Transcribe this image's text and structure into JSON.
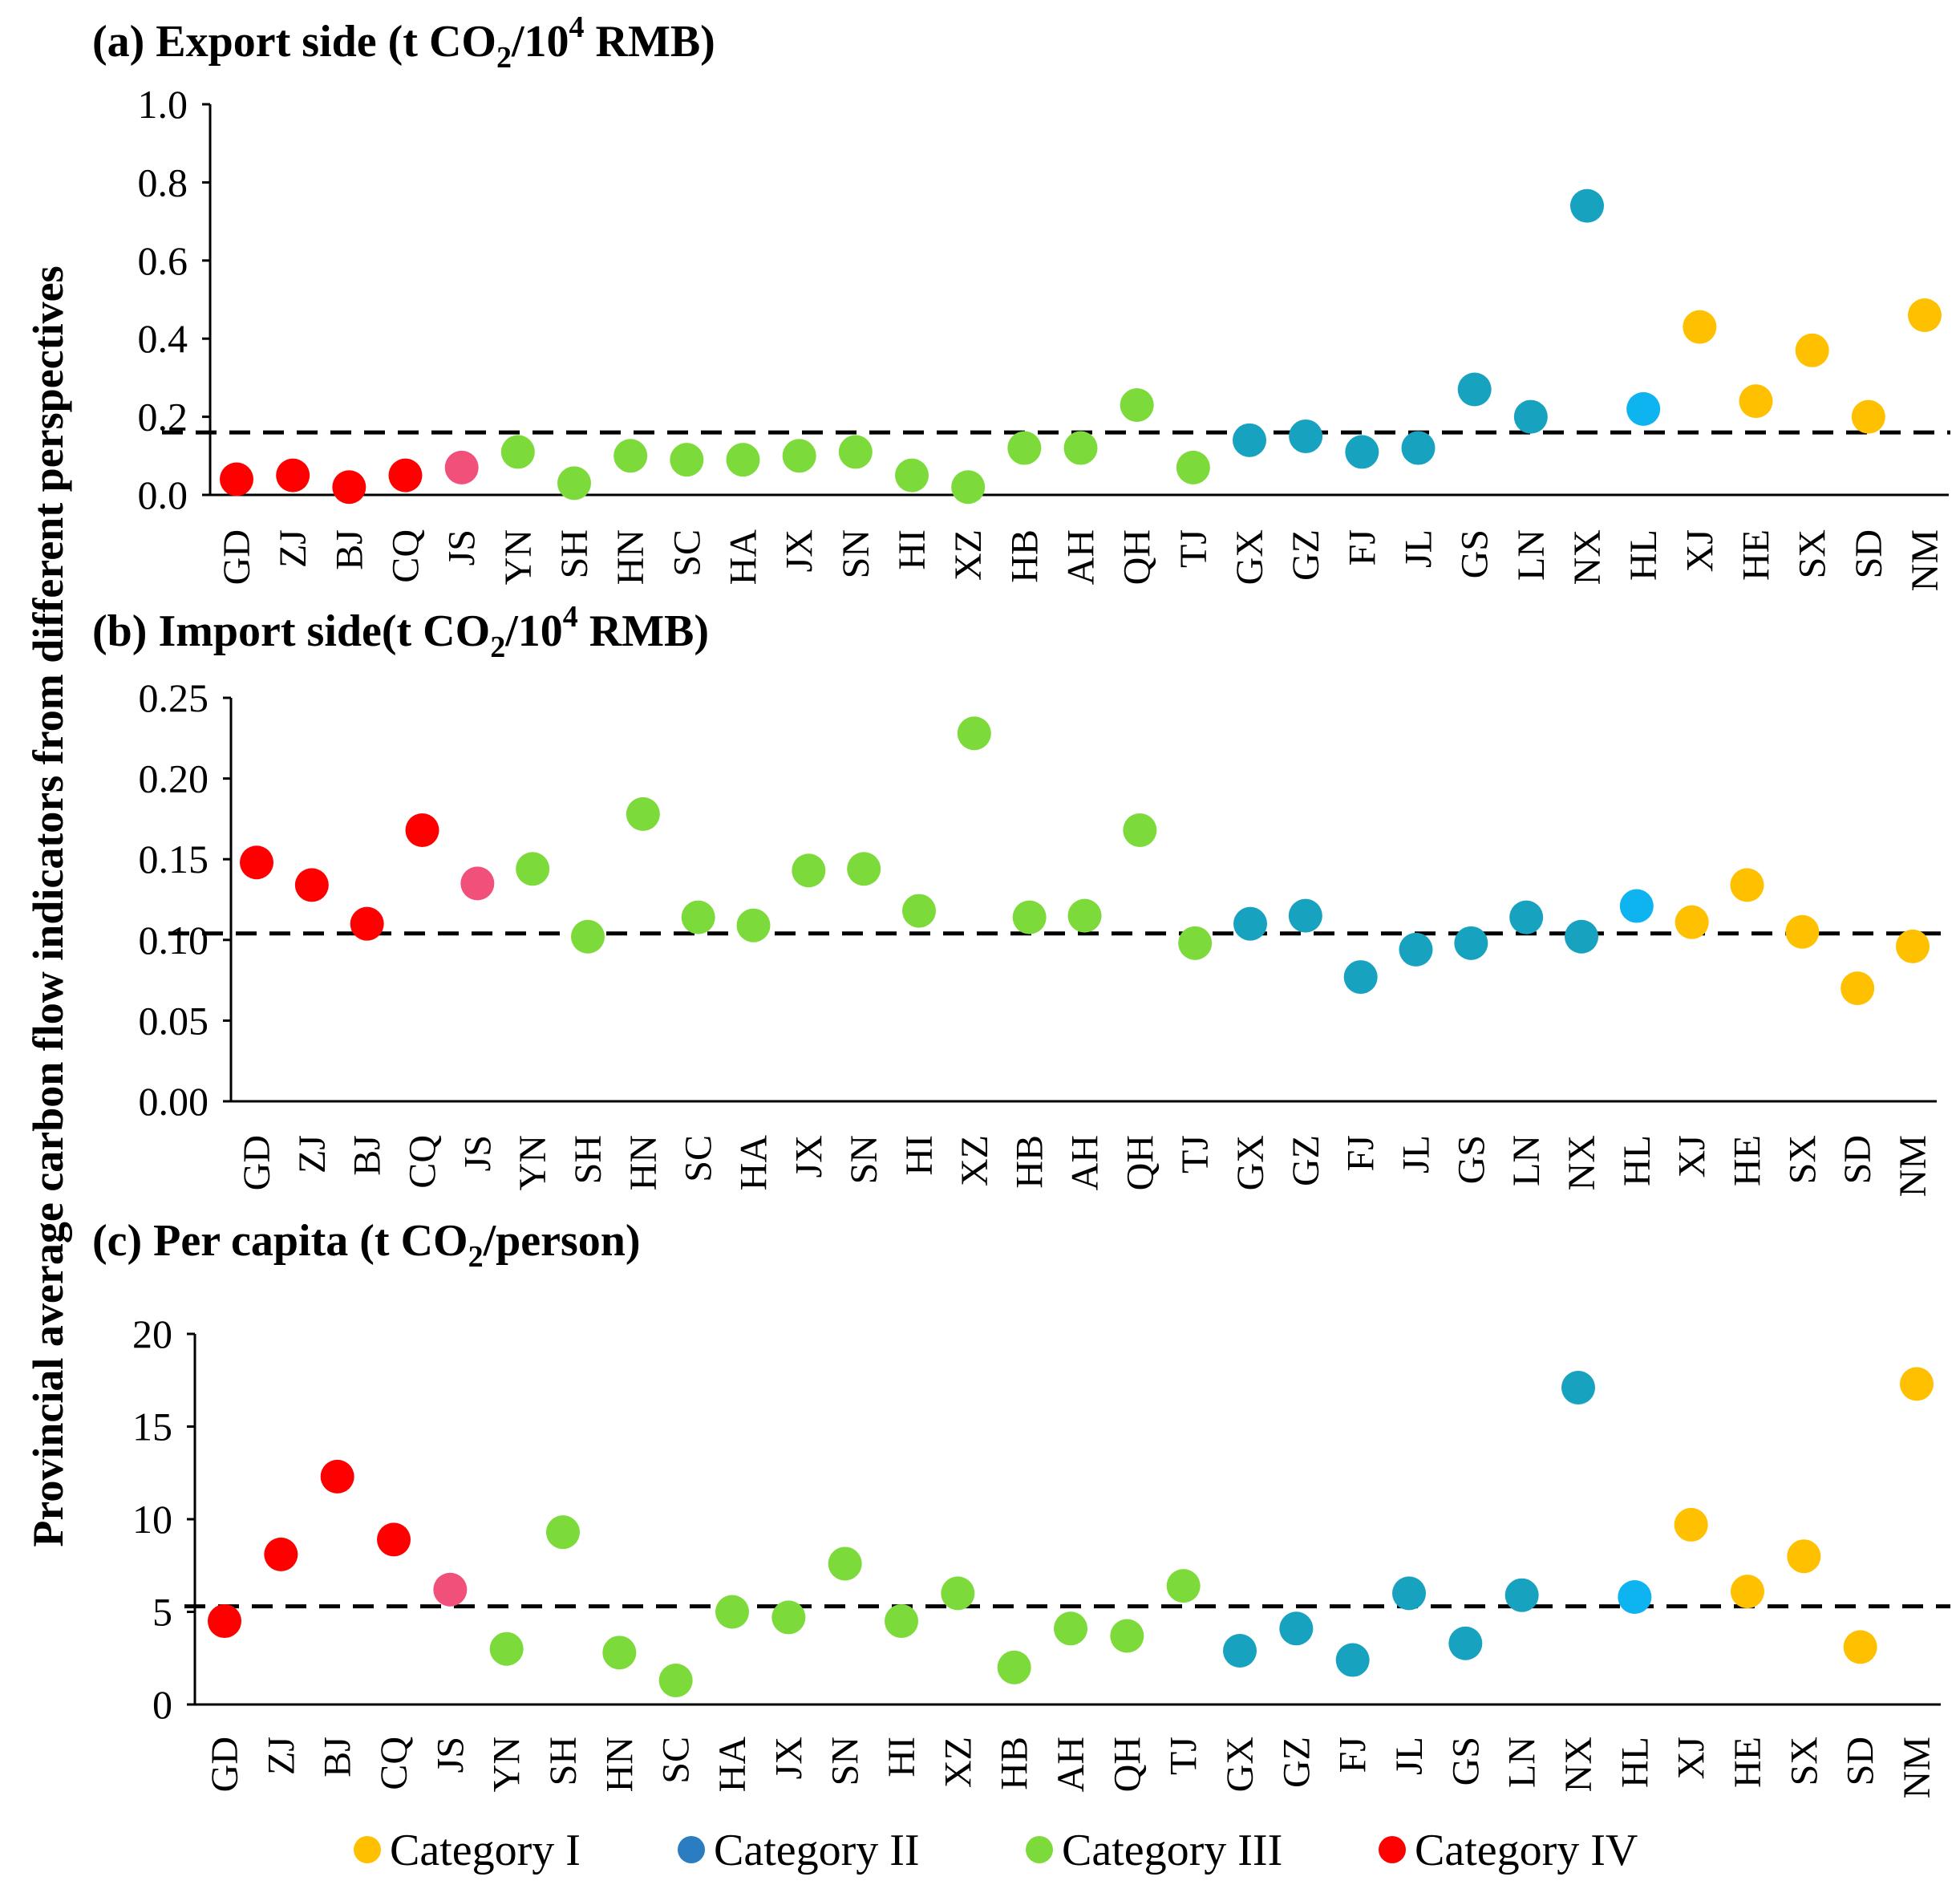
{
  "colors": {
    "cat1": "#FFC000",
    "cat2_dark": "#17A2C0",
    "cat2_light": "#0DB4EF",
    "cat3": "#7CDA3A",
    "cat4": "#FF0000",
    "cat4_pink": "#F0507A",
    "legend_cat2": "#2A7DC0"
  },
  "chart_data": {
    "type": "scatter",
    "y_axis_label": "Provincial average carbon flow indicators from different perspectives",
    "provinces": [
      "GD",
      "ZJ",
      "BJ",
      "CQ",
      "JS",
      "YN",
      "SH",
      "HN",
      "SC",
      "HA",
      "JX",
      "SN",
      "HI",
      "XZ",
      "HB",
      "AH",
      "QH",
      "TJ",
      "GX",
      "GZ",
      "FJ",
      "JL",
      "GS",
      "LN",
      "NX",
      "HL",
      "XJ",
      "HE",
      "SX",
      "SD",
      "NM"
    ],
    "point_colors": [
      "cat4",
      "cat4",
      "cat4",
      "cat4",
      "cat4_pink",
      "cat3",
      "cat3",
      "cat3",
      "cat3",
      "cat3",
      "cat3",
      "cat3",
      "cat3",
      "cat3",
      "cat3",
      "cat3",
      "cat3",
      "cat3",
      "cat2_dark",
      "cat2_dark",
      "cat2_dark",
      "cat2_dark",
      "cat2_dark",
      "cat2_dark",
      "cat2_dark",
      "cat2_light",
      "cat1",
      "cat1",
      "cat1",
      "cat1",
      "cat1"
    ],
    "panels": [
      {
        "id": "a",
        "title_pre": "(a) Export side (t CO",
        "title_sub": "2",
        "title_mid": "/10",
        "title_sup": "4",
        "title_post": " RMB)",
        "ylim": [
          0,
          1.0
        ],
        "yticks": [
          "0.0",
          "0.2",
          "0.4",
          "0.6",
          "0.8",
          "1.0"
        ],
        "ytick_values": [
          0,
          0.2,
          0.4,
          0.6,
          0.8,
          1.0
        ],
        "average": 0.16,
        "values": [
          0.04,
          0.05,
          0.02,
          0.05,
          0.07,
          0.11,
          0.03,
          0.1,
          0.09,
          0.09,
          0.1,
          0.11,
          0.05,
          0.02,
          0.12,
          0.12,
          0.23,
          0.07,
          0.14,
          0.15,
          0.11,
          0.12,
          0.27,
          0.2,
          0.74,
          0.22,
          0.43,
          0.24,
          0.37,
          0.2,
          0.46
        ]
      },
      {
        "id": "b",
        "title_pre": "(b) Import side(t CO",
        "title_sub": "2",
        "title_mid": "/10",
        "title_sup": "4",
        "title_post": " RMB)",
        "ylim": [
          0,
          0.25
        ],
        "yticks": [
          "0.00",
          "0.05",
          "0.10",
          "0.15",
          "0.20",
          "0.25"
        ],
        "ytick_values": [
          0,
          0.05,
          0.1,
          0.15,
          0.2,
          0.25
        ],
        "average": 0.104,
        "values": [
          0.148,
          0.134,
          0.11,
          0.168,
          0.135,
          0.144,
          0.102,
          0.178,
          0.114,
          0.109,
          0.143,
          0.144,
          0.118,
          0.228,
          0.114,
          0.115,
          0.168,
          0.098,
          0.11,
          0.115,
          0.077,
          0.094,
          0.098,
          0.114,
          0.102,
          0.121,
          0.111,
          0.134,
          0.105,
          0.07,
          0.096
        ]
      },
      {
        "id": "c",
        "title_pre": "(c) Per capita (t CO",
        "title_sub": "2",
        "title_mid": "/person)",
        "title_sup": "",
        "title_post": "",
        "ylim": [
          0,
          20
        ],
        "yticks": [
          "0",
          "5",
          "10",
          "15",
          "20"
        ],
        "ytick_values": [
          0,
          5,
          10,
          15,
          20
        ],
        "average": 5.3,
        "values": [
          4.5,
          8.1,
          12.3,
          8.9,
          6.2,
          3.0,
          9.3,
          2.8,
          1.3,
          5.0,
          4.7,
          7.6,
          4.5,
          6.0,
          2.0,
          4.1,
          3.7,
          6.4,
          2.9,
          4.1,
          2.4,
          6.0,
          3.3,
          5.9,
          17.1,
          5.8,
          9.7,
          6.1,
          8.0,
          3.1,
          17.3
        ]
      }
    ],
    "legend": [
      {
        "label": "Category I",
        "color": "cat1"
      },
      {
        "label": "Category II",
        "color": "legend_cat2"
      },
      {
        "label": "Category III",
        "color": "cat3"
      },
      {
        "label": "Category IV",
        "color": "cat4"
      }
    ]
  }
}
